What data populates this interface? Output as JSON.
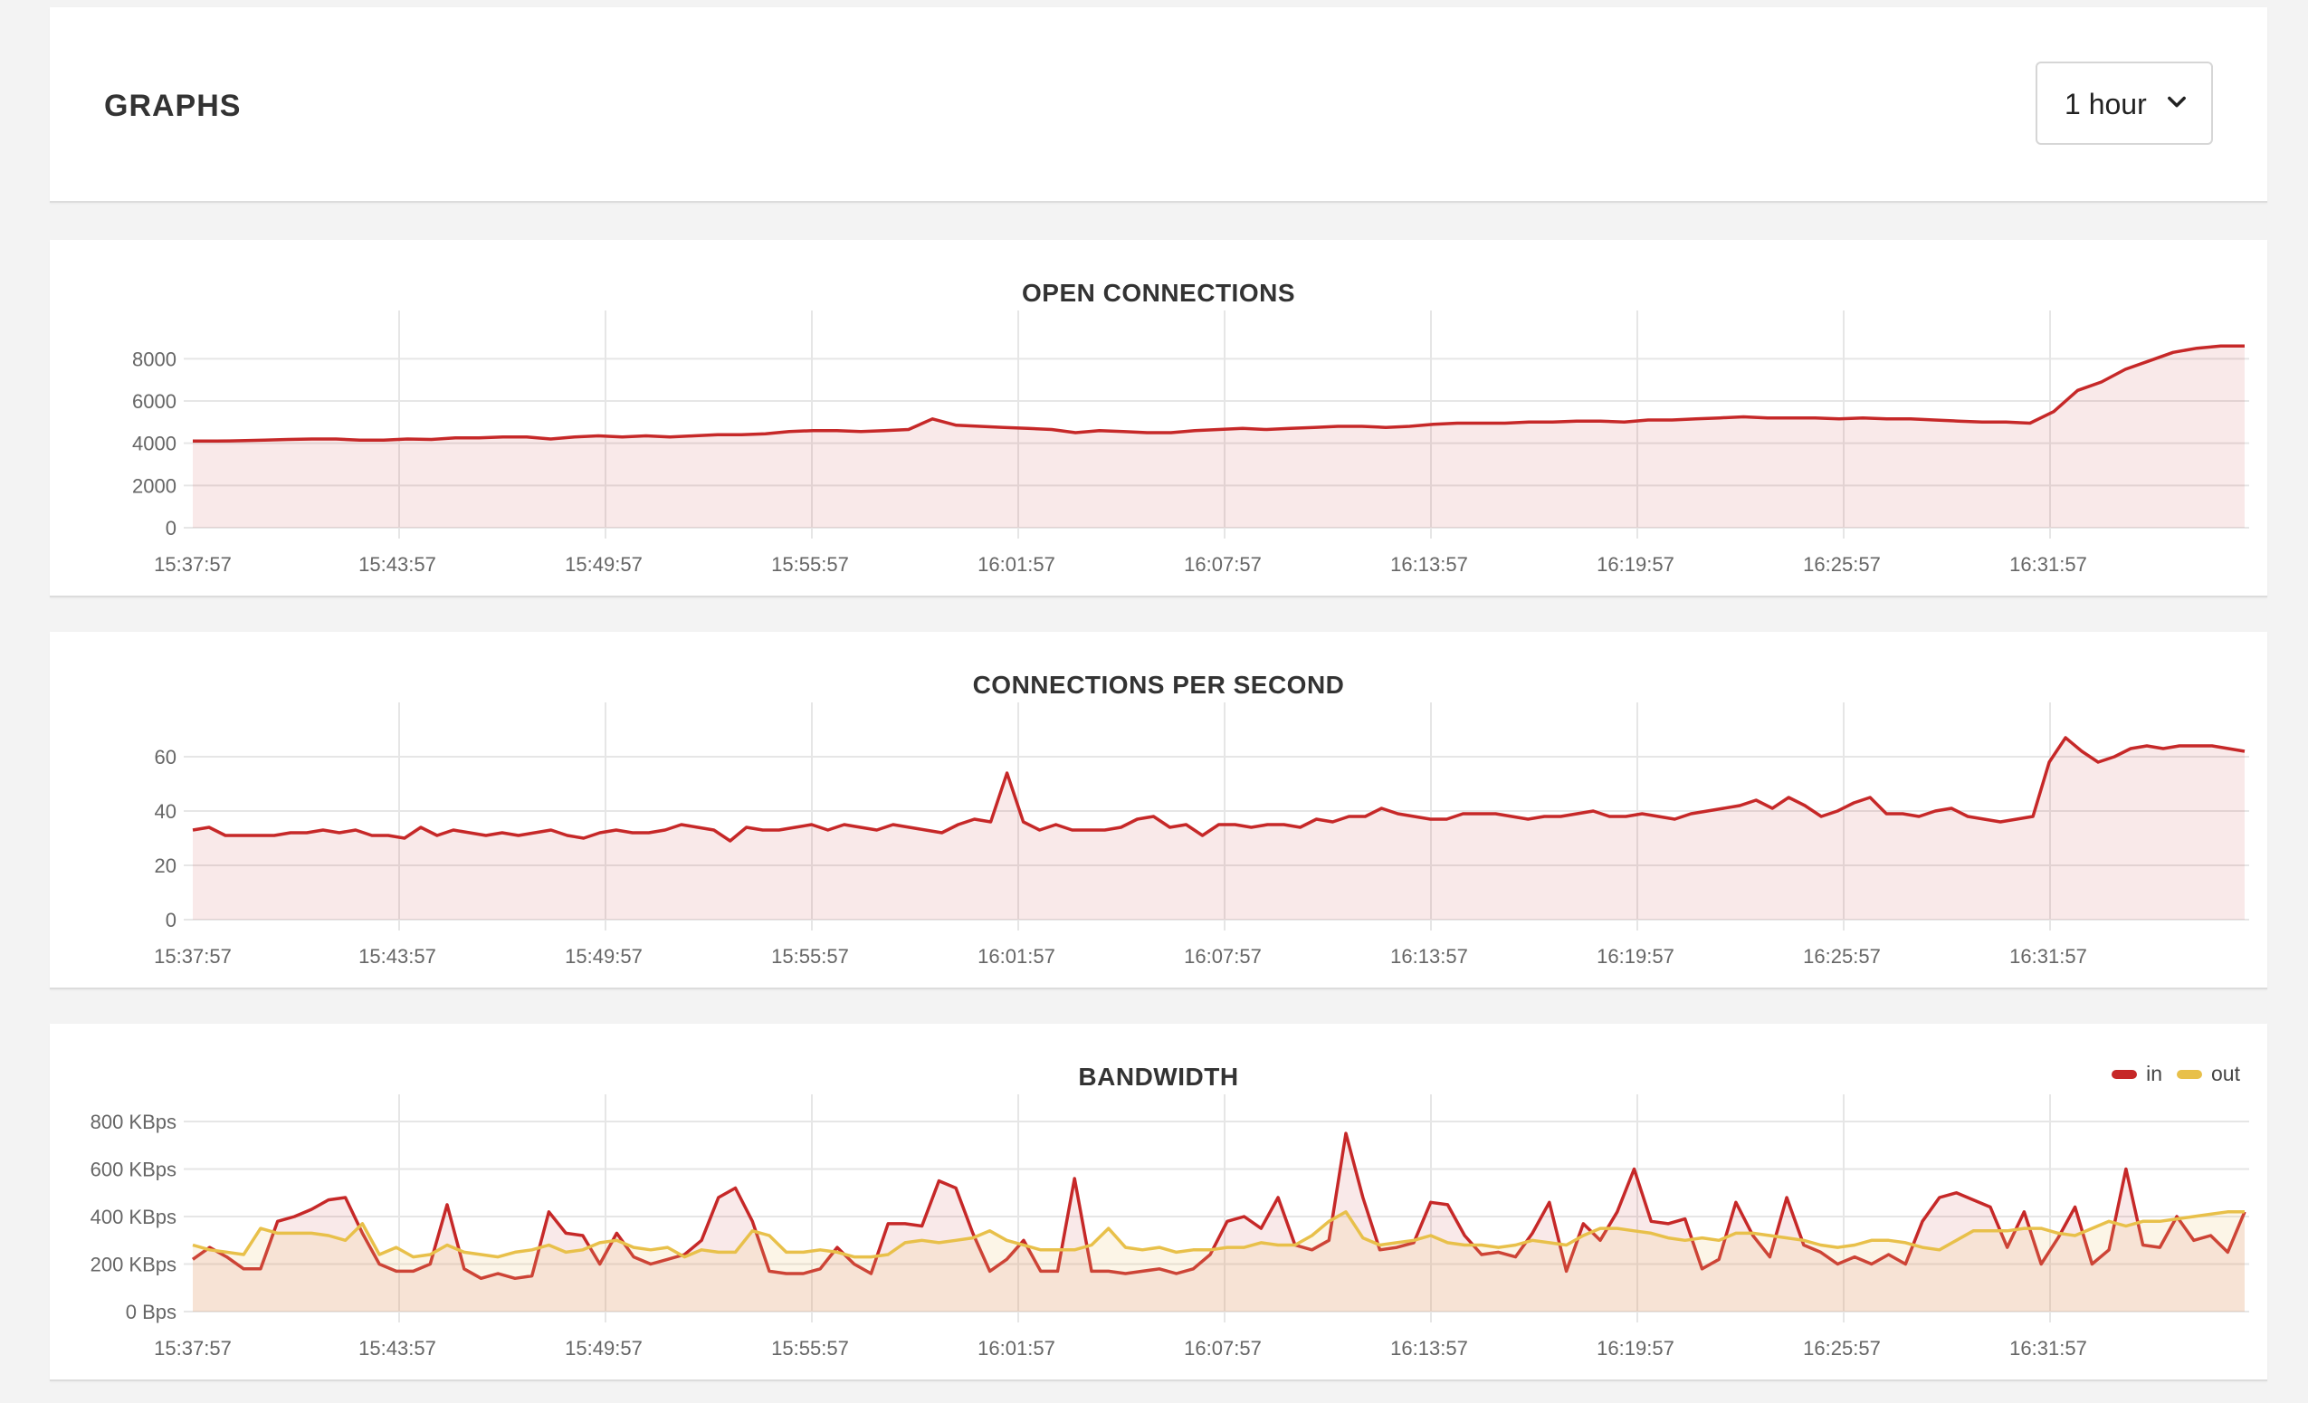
{
  "header": {
    "title": "GRAPHS",
    "range_select": {
      "value": "1 hour",
      "icon": "chevron-down-icon"
    }
  },
  "colors": {
    "in_line": "#c62828",
    "in_fill": "rgba(198,40,40,0.10)",
    "out_line": "#e8c04a",
    "out_fill": "rgba(240,200,120,0.18)",
    "grid": "#e6e6e6"
  },
  "chart_data": [
    {
      "type": "area",
      "title": "OPEN CONNECTIONS",
      "x_ticks": [
        "15:37:57",
        "15:43:57",
        "15:49:57",
        "15:55:57",
        "16:01:57",
        "16:07:57",
        "16:13:57",
        "16:19:57",
        "16:25:57",
        "16:31:57"
      ],
      "y_ticks": [
        "0",
        "2000",
        "4000",
        "6000",
        "8000"
      ],
      "ylim": [
        0,
        9000
      ],
      "series": [
        {
          "values": [
            4100,
            4100,
            4120,
            4150,
            4180,
            4200,
            4200,
            4150,
            4150,
            4200,
            4180,
            4250,
            4250,
            4300,
            4300,
            4200,
            4300,
            4350,
            4300,
            4350,
            4300,
            4350,
            4400,
            4400,
            4450,
            4550,
            4600,
            4600,
            4550,
            4600,
            4650,
            5150,
            4850,
            4800,
            4750,
            4700,
            4650,
            4500,
            4600,
            4550,
            4500,
            4500,
            4600,
            4650,
            4700,
            4650,
            4700,
            4750,
            4800,
            4800,
            4750,
            4800,
            4900,
            4950,
            4950,
            4950,
            5000,
            5000,
            5050,
            5050,
            5000,
            5100,
            5100,
            5150,
            5200,
            5250,
            5200,
            5200,
            5200,
            5150,
            5200,
            5150,
            5150,
            5100,
            5050,
            5000,
            5000,
            4950,
            5500,
            6500,
            6900,
            7500,
            7900,
            8300,
            8500,
            8600,
            8600
          ]
        }
      ]
    },
    {
      "type": "area",
      "title": "CONNECTIONS PER SECOND",
      "x_ticks": [
        "15:37:57",
        "15:43:57",
        "15:49:57",
        "15:55:57",
        "16:01:57",
        "16:07:57",
        "16:13:57",
        "16:19:57",
        "16:25:57",
        "16:31:57"
      ],
      "y_ticks": [
        "0",
        "20",
        "40",
        "60"
      ],
      "ylim": [
        0,
        70
      ],
      "series": [
        {
          "values": [
            33,
            34,
            31,
            31,
            31,
            31,
            32,
            32,
            33,
            32,
            33,
            31,
            31,
            30,
            34,
            31,
            33,
            32,
            31,
            32,
            31,
            32,
            33,
            31,
            30,
            32,
            33,
            32,
            32,
            33,
            35,
            34,
            33,
            29,
            34,
            33,
            33,
            34,
            35,
            33,
            35,
            34,
            33,
            35,
            34,
            33,
            32,
            35,
            37,
            36,
            54,
            36,
            33,
            35,
            33,
            33,
            33,
            34,
            37,
            38,
            34,
            35,
            31,
            35,
            35,
            34,
            35,
            35,
            34,
            37,
            36,
            38,
            38,
            41,
            39,
            38,
            37,
            37,
            39,
            39,
            39,
            38,
            37,
            38,
            38,
            39,
            40,
            38,
            38,
            39,
            38,
            37,
            39,
            40,
            41,
            42,
            44,
            41,
            45,
            42,
            38,
            40,
            43,
            45,
            39,
            39,
            38,
            40,
            41,
            38,
            37,
            36,
            37,
            38,
            58,
            67,
            62,
            58,
            60,
            63,
            64,
            63,
            64,
            64,
            64,
            63,
            62
          ]
        }
      ]
    },
    {
      "type": "area",
      "title": "BANDWIDTH",
      "x_ticks": [
        "15:37:57",
        "15:43:57",
        "15:49:57",
        "15:55:57",
        "16:01:57",
        "16:07:57",
        "16:13:57",
        "16:19:57",
        "16:25:57",
        "16:31:57"
      ],
      "y_ticks": [
        "0 Bps",
        "200 KBps",
        "400 KBps",
        "600 KBps",
        "800 KBps"
      ],
      "ylim": [
        0,
        800
      ],
      "legend_position": "top-right",
      "series": [
        {
          "name": "in",
          "values": [
            220,
            270,
            230,
            180,
            180,
            380,
            400,
            430,
            470,
            480,
            330,
            200,
            170,
            170,
            200,
            450,
            180,
            140,
            160,
            140,
            150,
            420,
            330,
            320,
            200,
            330,
            230,
            200,
            220,
            240,
            300,
            480,
            520,
            380,
            170,
            160,
            160,
            180,
            270,
            200,
            160,
            370,
            370,
            360,
            550,
            520,
            330,
            170,
            220,
            300,
            170,
            170,
            560,
            170,
            170,
            160,
            170,
            180,
            160,
            180,
            240,
            380,
            400,
            350,
            480,
            280,
            260,
            300,
            750,
            480,
            260,
            270,
            290,
            460,
            450,
            320,
            240,
            250,
            230,
            330,
            460,
            170,
            370,
            300,
            420,
            600,
            380,
            370,
            390,
            180,
            220,
            460,
            320,
            230,
            480,
            280,
            250,
            200,
            230,
            200,
            240,
            200,
            380,
            480,
            500,
            470,
            440,
            270,
            420,
            200,
            310,
            440,
            200,
            260,
            600,
            280,
            270,
            400,
            300,
            320,
            250,
            420
          ]
        },
        {
          "name": "out",
          "values": [
            280,
            260,
            250,
            240,
            350,
            330,
            330,
            330,
            320,
            300,
            370,
            240,
            270,
            230,
            240,
            280,
            250,
            240,
            230,
            250,
            260,
            280,
            250,
            260,
            290,
            300,
            270,
            260,
            270,
            230,
            260,
            250,
            250,
            340,
            320,
            250,
            250,
            260,
            250,
            230,
            230,
            240,
            290,
            300,
            290,
            300,
            310,
            340,
            300,
            280,
            260,
            260,
            260,
            280,
            350,
            270,
            260,
            270,
            250,
            260,
            260,
            270,
            270,
            290,
            280,
            280,
            320,
            380,
            420,
            310,
            280,
            290,
            300,
            320,
            290,
            280,
            280,
            270,
            280,
            300,
            290,
            280,
            320,
            350,
            350,
            340,
            330,
            310,
            300,
            310,
            300,
            330,
            330,
            320,
            310,
            300,
            280,
            270,
            280,
            300,
            300,
            290,
            270,
            260,
            300,
            340,
            340,
            340,
            350,
            350,
            330,
            320,
            350,
            380,
            360,
            380,
            380,
            390,
            400,
            410,
            420,
            420
          ]
        }
      ],
      "legend": [
        {
          "label": "in",
          "color": "#c62828"
        },
        {
          "label": "out",
          "color": "#e8c04a"
        }
      ]
    }
  ]
}
